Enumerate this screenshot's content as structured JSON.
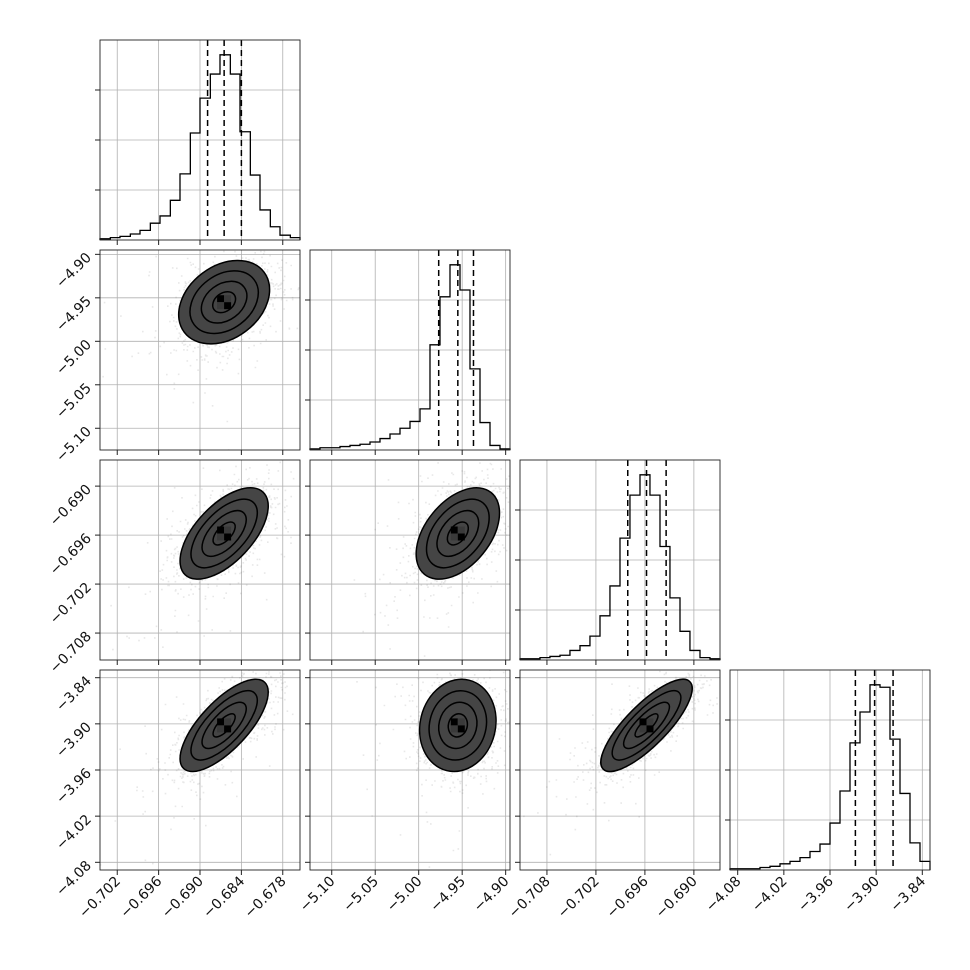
{
  "chart_data": {
    "type": "corner",
    "parameters": [
      {
        "range": [
          -0.7045,
          -0.6755
        ],
        "ticks": [
          -0.702,
          -0.696,
          -0.69,
          -0.684,
          -0.678
        ],
        "tick_labels": [
          "−0.702",
          "−0.696",
          "−0.690",
          "−0.684",
          "−0.678"
        ],
        "median": -0.6865,
        "quantiles": [
          -0.6889,
          -0.6865,
          -0.684
        ],
        "histogram": {
          "edges": [
            -0.7045,
            -0.703,
            -0.7016,
            -0.7001,
            -0.6987,
            -0.6972,
            -0.6958,
            -0.6943,
            -0.6929,
            -0.6914,
            -0.69,
            -0.6885,
            -0.6871,
            -0.6856,
            -0.6842,
            -0.6827,
            -0.6813,
            -0.6798,
            -0.6784,
            -0.6769,
            -0.6755
          ],
          "counts": [
            1,
            2,
            3,
            5,
            8,
            14,
            20,
            33,
            55,
            89,
            118,
            138,
            154,
            138,
            90,
            54,
            25,
            11,
            4,
            2
          ]
        }
      },
      {
        "range": [
          -5.125,
          -4.895
        ],
        "ticks": [
          -5.1,
          -5.05,
          -5.0,
          -4.95,
          -4.9
        ],
        "tick_labels": [
          "−5.10",
          "−5.05",
          "−5.00",
          "−4.95",
          "−4.90"
        ],
        "median": -4.955,
        "quantiles": [
          -4.977,
          -4.955,
          -4.937
        ],
        "histogram": {
          "edges": [
            -5.125,
            -5.1135,
            -5.102,
            -5.0905,
            -5.079,
            -5.0675,
            -5.056,
            -5.0445,
            -5.033,
            -5.0215,
            -5.01,
            -4.9985,
            -4.987,
            -4.9755,
            -4.964,
            -4.9525,
            -4.941,
            -4.9295,
            -4.918,
            -4.9065,
            -4.895
          ],
          "counts": [
            1,
            2,
            2,
            3,
            4,
            5,
            7,
            10,
            14,
            19,
            25,
            36,
            92,
            134,
            162,
            140,
            71,
            24,
            4,
            1
          ]
        }
      },
      {
        "range": [
          -0.7113,
          -0.6868
        ],
        "ticks": [
          -0.708,
          -0.702,
          -0.696,
          -0.69
        ],
        "tick_labels": [
          "−0.708",
          "−0.702",
          "−0.696",
          "−0.690"
        ],
        "median": -0.6958,
        "quantiles": [
          -0.6981,
          -0.6958,
          -0.6934
        ],
        "histogram": {
          "edges": [
            -0.7113,
            -0.71008,
            -0.70885,
            -0.70763,
            -0.7064,
            -0.70518,
            -0.70395,
            -0.70273,
            -0.7015,
            -0.70028,
            -0.69905,
            -0.69783,
            -0.6966,
            -0.69538,
            -0.69415,
            -0.69293,
            -0.6917,
            -0.69048,
            -0.68925,
            -0.68803,
            -0.6868
          ],
          "counts": [
            1,
            1,
            2,
            3,
            4,
            8,
            12,
            20,
            37,
            62,
            102,
            138,
            155,
            138,
            95,
            52,
            24,
            8,
            2,
            1
          ]
        }
      },
      {
        "range": [
          -4.09,
          -3.83
        ],
        "ticks": [
          -4.08,
          -4.02,
          -3.96,
          -3.9,
          -3.84
        ],
        "tick_labels": [
          "−4.08",
          "−4.02",
          "−3.96",
          "−3.90",
          "−3.84"
        ],
        "median": -3.902,
        "quantiles": [
          -3.927,
          -3.902,
          -3.878
        ],
        "histogram": {
          "edges": [
            -4.09,
            -4.077,
            -4.064,
            -4.051,
            -4.038,
            -4.025,
            -4.012,
            -3.999,
            -3.986,
            -3.973,
            -3.96,
            -3.947,
            -3.934,
            -3.921,
            -3.908,
            -3.895,
            -3.882,
            -3.869,
            -3.856,
            -3.843,
            -3.83
          ],
          "counts": [
            1,
            1,
            1,
            2,
            3,
            5,
            7,
            10,
            15,
            21,
            38,
            64,
            103,
            128,
            150,
            148,
            106,
            62,
            22,
            7
          ]
        }
      }
    ],
    "pairs": [
      {
        "x": 0,
        "y": 1,
        "center": [
          -0.6865,
          -4.955
        ],
        "sd": [
          0.0033,
          0.024
        ],
        "rho": 0.3
      },
      {
        "x": 0,
        "y": 2,
        "center": [
          -0.6865,
          -0.6958
        ],
        "sd": [
          0.0032,
          0.0028
        ],
        "rho": 0.6
      },
      {
        "x": 0,
        "y": 3,
        "center": [
          -0.6865,
          -3.902
        ],
        "sd": [
          0.0032,
          0.03
        ],
        "rho": 0.72
      },
      {
        "x": 1,
        "y": 2,
        "center": [
          -4.955,
          -0.6958
        ],
        "sd": [
          0.024,
          0.0028
        ],
        "rho": 0.45
      },
      {
        "x": 1,
        "y": 3,
        "center": [
          -4.955,
          -3.902
        ],
        "sd": [
          0.022,
          0.03
        ],
        "rho": 0.1
      },
      {
        "x": 2,
        "y": 3,
        "center": [
          -0.6958,
          -3.902
        ],
        "sd": [
          0.0028,
          0.03
        ],
        "rho": 0.8
      }
    ],
    "contour_levels": [
      0.118,
      0.393,
      0.675,
      0.864
    ],
    "grid": true,
    "xlabel": "",
    "ylabel": "",
    "title": ""
  }
}
